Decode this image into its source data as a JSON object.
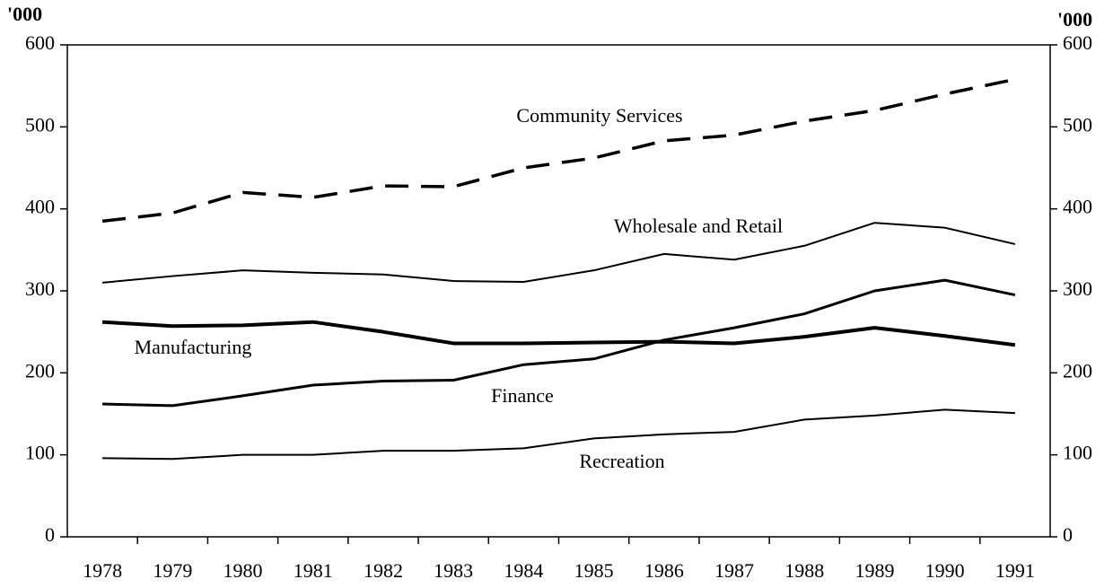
{
  "chart_data": {
    "type": "line",
    "y_label": "'000",
    "y2_label": "'000",
    "categories": [
      "1978",
      "1979",
      "1980",
      "1981",
      "1982",
      "1983",
      "1984",
      "1985",
      "1986",
      "1987",
      "1988",
      "1989",
      "1990",
      "1991"
    ],
    "series": [
      {
        "name": "Community Services",
        "color": "#000000",
        "style": "dashed",
        "width": 3.5,
        "values": [
          385,
          395,
          420,
          414,
          428,
          427,
          450,
          462,
          483,
          490,
          507,
          520,
          540,
          558
        ]
      },
      {
        "name": "Wholesale and Retail",
        "color": "#000000",
        "style": "solid",
        "width": 2,
        "values": [
          310,
          318,
          325,
          322,
          320,
          312,
          311,
          325,
          345,
          338,
          355,
          383,
          377,
          357
        ]
      },
      {
        "name": "Manufacturing",
        "color": "#000000",
        "style": "solid",
        "width": 4,
        "values": [
          262,
          257,
          258,
          262,
          250,
          236,
          236,
          237,
          238,
          236,
          244,
          255,
          245,
          234
        ]
      },
      {
        "name": "Finance",
        "color": "#000000",
        "style": "solid",
        "width": 3,
        "values": [
          162,
          160,
          172,
          185,
          190,
          191,
          210,
          217,
          240,
          255,
          272,
          300,
          313,
          295
        ]
      },
      {
        "name": "Recreation",
        "color": "#000000",
        "style": "solid",
        "width": 2,
        "values": [
          96,
          95,
          100,
          100,
          105,
          105,
          108,
          120,
          125,
          128,
          143,
          148,
          155,
          151
        ]
      }
    ],
    "ylim": [
      0,
      600
    ],
    "yticks": [
      0,
      100,
      200,
      300,
      400,
      500,
      600
    ],
    "y2lim": [
      0,
      600
    ],
    "y2ticks": [
      0,
      100,
      200,
      300,
      400,
      500,
      600
    ],
    "grid": false
  }
}
